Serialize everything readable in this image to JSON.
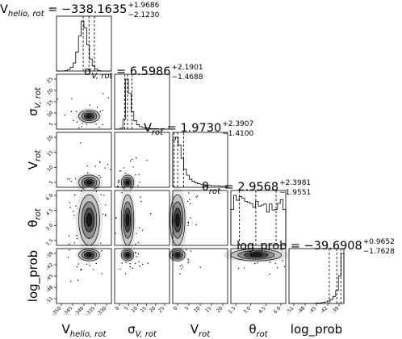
{
  "chart_data": {
    "type": "corner",
    "parameters": [
      {
        "symbol": "V",
        "subscript": "helio, rot",
        "range": [
          -350,
          -330
        ],
        "ticks": [
          "-350",
          "-345",
          "-340",
          "-335",
          "-330"
        ]
      },
      {
        "symbol": "σ",
        "subscript": "V, rot",
        "range": [
          0,
          28
        ],
        "ticks": [
          "0",
          "5",
          "10",
          "15",
          "20",
          "25"
        ]
      },
      {
        "symbol": "V",
        "subscript": "rot",
        "range": [
          0,
          22
        ],
        "ticks": [
          "0",
          "5",
          "10",
          "15",
          "20"
        ]
      },
      {
        "symbol": "θ",
        "subscript": "rot",
        "range": [
          0,
          6.5
        ],
        "ticks": [
          "1.5",
          "3.0",
          "4.5",
          "6.0"
        ]
      },
      {
        "symbol": "log_prob",
        "subscript": "",
        "range": [
          -51,
          -38
        ],
        "ticks": [
          "-51",
          "-48",
          "-45",
          "-42",
          "-39"
        ]
      }
    ],
    "row_ticks": [
      null,
      [
        "25",
        "20",
        "15",
        "10",
        "5"
      ],
      [
        "20",
        "15",
        "10",
        "5"
      ],
      [
        "6.0",
        "4.5",
        "3.0",
        "1.5"
      ],
      [
        "-39",
        "-42",
        "-45",
        "-48",
        "-51"
      ]
    ],
    "titles": [
      {
        "lhs": "V",
        "lhs_sub": "helio, rot",
        "value": " = −338.1635",
        "plus": "+1.9686",
        "minus": "−2.1230"
      },
      {
        "lhs": "σ",
        "lhs_sub": "V, rot",
        "value": " = 6.5986",
        "plus": "+2.1901",
        "minus": "−1.4688"
      },
      {
        "lhs": "V",
        "lhs_sub": "rot",
        "value": " = 1.9730",
        "plus": "+2.3907",
        "minus": "−1.4100"
      },
      {
        "lhs": "θ",
        "lhs_sub": "rot",
        "value": " = 2.9568",
        "plus": "+2.3981",
        "minus": "−1.9551"
      },
      {
        "lhs": "log_prob",
        "lhs_sub": "",
        "value": " = −39.6908",
        "plus": "+0.9652",
        "minus": "−1.7628"
      }
    ],
    "quantiles": [
      [
        -340.2865,
        -338.1635,
        -336.1949
      ],
      [
        5.1298,
        6.5986,
        8.7887
      ],
      [
        0.563,
        1.973,
        4.3637
      ],
      [
        1.0017,
        2.9568,
        5.3549
      ],
      [
        -41.4536,
        -39.6908,
        -38.7256
      ]
    ],
    "histograms": [
      [
        0,
        0,
        0,
        1,
        3,
        7,
        16,
        38,
        70,
        100,
        86,
        52,
        24,
        10,
        4,
        1,
        0,
        0,
        0,
        0
      ],
      [
        0,
        0,
        2,
        20,
        100,
        72,
        35,
        17,
        9,
        5,
        3,
        2,
        2,
        1,
        1,
        1,
        0,
        1,
        0,
        0
      ],
      [
        95,
        100,
        84,
        58,
        36,
        24,
        16,
        12,
        9,
        7,
        6,
        5,
        4,
        4,
        3,
        3,
        3,
        2,
        2,
        2
      ],
      [
        66,
        92,
        83,
        90,
        87,
        81,
        79,
        77,
        70,
        81,
        72,
        74,
        76,
        61,
        76,
        65,
        66,
        77,
        84,
        66
      ],
      [
        0,
        0,
        0,
        0,
        0,
        0,
        0,
        0,
        0,
        0,
        1,
        1,
        2,
        3,
        5,
        8,
        14,
        26,
        55,
        100
      ]
    ]
  }
}
